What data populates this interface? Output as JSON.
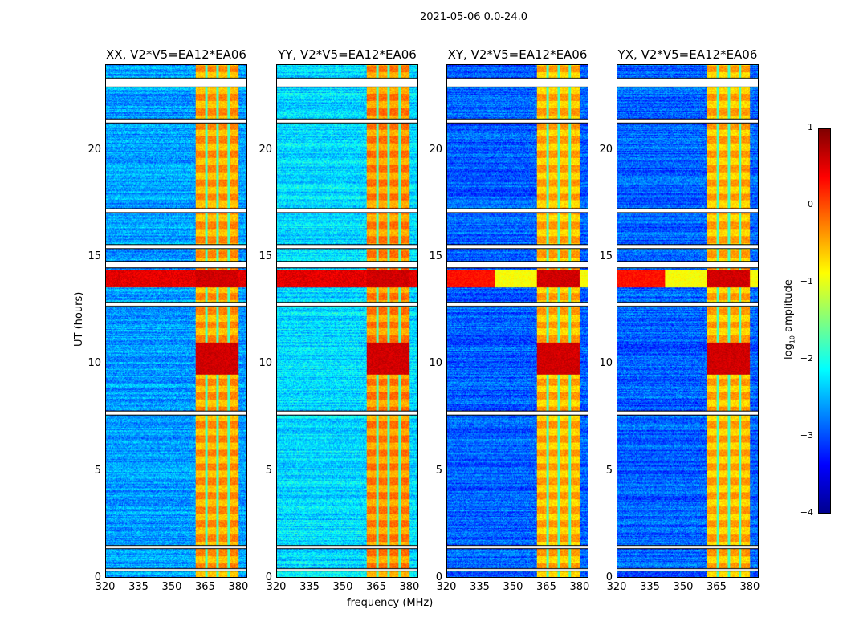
{
  "suptitle": "2021-05-06 0.0-24.0",
  "chart_data": {
    "type": "heatmap",
    "title": "2021-05-06 0.0-24.0",
    "xlabel": "frequency (MHz)",
    "ylabel": "UT (hours)",
    "xlim": [
      320,
      384
    ],
    "ylim": [
      0,
      24
    ],
    "xticks": [
      "320",
      "335",
      "350",
      "365",
      "380"
    ],
    "xtick_values": [
      320,
      335,
      350,
      365,
      380
    ],
    "yticks": [
      "0",
      "5",
      "10",
      "15",
      "20"
    ],
    "ytick_values": [
      0,
      5,
      10,
      15,
      20
    ],
    "colorbar": {
      "label": "log10 amplitude",
      "label_main": "log",
      "label_sub": "10",
      "label_rest": " amplitude",
      "clim": [
        -4,
        1
      ],
      "ticks": [
        "1",
        "0",
        "−1",
        "−2",
        "−3",
        "−4"
      ],
      "tick_values": [
        1,
        0,
        -1,
        -2,
        -3,
        -4
      ],
      "colormap": "jet"
    },
    "panels": [
      {
        "title": "XX, V2*V5=EA12*EA06",
        "background_level": -2.6,
        "band_level": -0.5
      },
      {
        "title": "YY, V2*V5=EA12*EA06",
        "background_level": -2.3,
        "band_level": -0.4
      },
      {
        "title": "XY, V2*V5=EA12*EA06",
        "background_level": -2.9,
        "band_level": -0.6
      },
      {
        "title": "YX, V2*V5=EA12*EA06",
        "background_level": -2.9,
        "band_level": -0.6
      }
    ],
    "rfi_band_MHz": [
      360.5,
      380.3
    ],
    "rfi_subband_edges_MHz": [
      365.5,
      370.5,
      375.6
    ],
    "strong_rfi_hours": [
      [
        13.6,
        14.4
      ],
      [
        9.5,
        11.0
      ]
    ],
    "flagged_hours": [
      [
        23.0,
        23.4
      ],
      [
        21.3,
        21.5
      ],
      [
        17.1,
        17.3
      ],
      [
        15.4,
        15.6
      ],
      [
        14.5,
        14.8
      ],
      [
        12.7,
        12.9
      ],
      [
        7.6,
        7.8
      ],
      [
        1.35,
        1.5
      ],
      [
        0.3,
        0.4
      ]
    ]
  }
}
